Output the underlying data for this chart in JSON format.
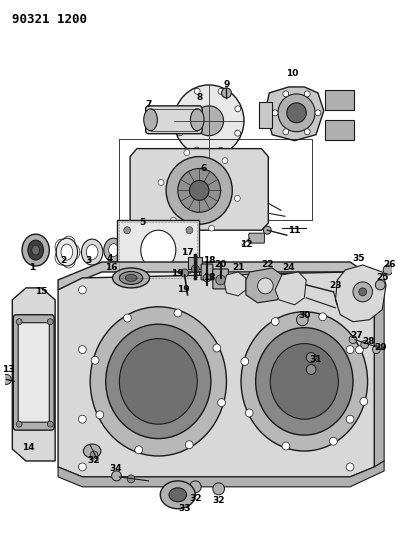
{
  "title": "90321 1200",
  "bg_color": "#ffffff",
  "line_color": "#1a1a1a",
  "title_fontsize": 9,
  "fig_width": 3.98,
  "fig_height": 5.33,
  "dpi": 100,
  "label_fontsize": 6.5,
  "label_color": "#000000"
}
